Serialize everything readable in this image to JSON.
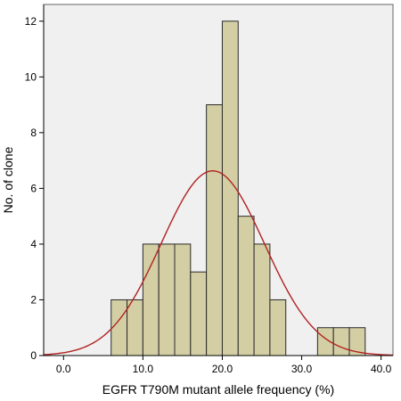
{
  "chart_data": {
    "type": "bar",
    "xlabel": "EGFR T790M mutant allele frequency (%)",
    "ylabel": "No. of clone",
    "xlim": [
      -2.5,
      41.5
    ],
    "ylim": [
      0,
      12.6
    ],
    "xticks": [
      0,
      10,
      20,
      30,
      40
    ],
    "xtick_labels": [
      "0.0",
      "10.0",
      "20.0",
      "30.0",
      "40.0"
    ],
    "yticks": [
      0,
      2,
      4,
      6,
      8,
      10,
      12
    ],
    "ytick_labels": [
      "0",
      "2",
      "4",
      "6",
      "8",
      "10",
      "12"
    ],
    "bins": [
      {
        "start": 6.0,
        "end": 8.0,
        "count": 2
      },
      {
        "start": 8.0,
        "end": 10.0,
        "count": 2
      },
      {
        "start": 10.0,
        "end": 12.0,
        "count": 4
      },
      {
        "start": 12.0,
        "end": 14.0,
        "count": 4
      },
      {
        "start": 14.0,
        "end": 16.0,
        "count": 4
      },
      {
        "start": 16.0,
        "end": 18.0,
        "count": 3
      },
      {
        "start": 18.0,
        "end": 20.0,
        "count": 9
      },
      {
        "start": 20.0,
        "end": 22.0,
        "count": 12
      },
      {
        "start": 22.0,
        "end": 24.0,
        "count": 5
      },
      {
        "start": 24.0,
        "end": 26.0,
        "count": 4
      },
      {
        "start": 26.0,
        "end": 28.0,
        "count": 2
      },
      {
        "start": 32.0,
        "end": 34.0,
        "count": 1
      },
      {
        "start": 34.0,
        "end": 36.0,
        "count": 1
      },
      {
        "start": 36.0,
        "end": 38.0,
        "count": 1
      }
    ],
    "normal_curve": {
      "mean": 18.8,
      "sd": 6.5,
      "n": 54,
      "bin_width": 2.0
    },
    "grid": false,
    "colors": {
      "plot_background": "#f0f0f0",
      "bar_fill": "#d3cea3",
      "bar_stroke": "#2a2a2a",
      "curve": "#b22222"
    }
  }
}
